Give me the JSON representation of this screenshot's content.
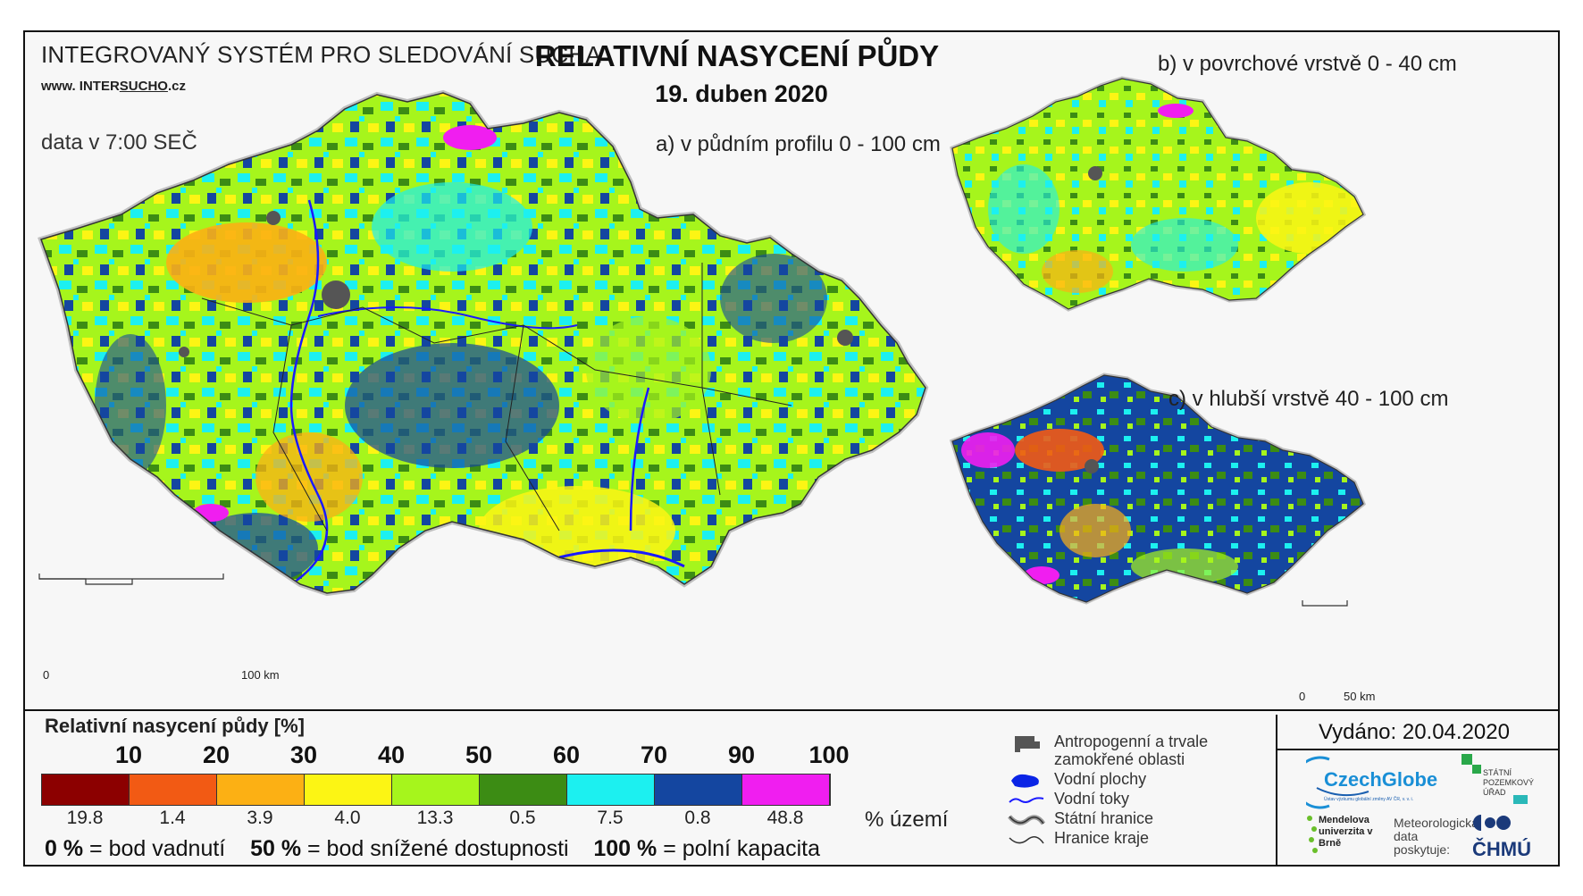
{
  "header": {
    "system_name": "INTEGROVANÝ SYSTÉM PRO SLEDOVÁNÍ SUCHA",
    "url_prefix": "www. INTER",
    "url_brand": "SUCHO",
    "url_suffix": ".cz",
    "data_time": "data v 7:00 SEČ",
    "title": "RELATIVNÍ NASYCENÍ PŮDY",
    "date": "19. duben 2020"
  },
  "maps": {
    "a_label": "a) v půdním profilu 0 - 100 cm",
    "b_label": "b) v povrchové vrstvě 0 - 40 cm",
    "c_label": "c) v hlubší vrstvě 40 - 100 cm",
    "scale_a": {
      "start": "0",
      "end": "100 km"
    },
    "scale_c": {
      "start": "0",
      "end": "50 km"
    }
  },
  "legend": {
    "title": "Relativní nasycení půdy [%]",
    "thresholds": [
      "10",
      "20",
      "30",
      "40",
      "50",
      "60",
      "70",
      "90",
      "100"
    ],
    "classes": [
      {
        "color": "#8c0000",
        "share": "19.8"
      },
      {
        "color": "#f25a14",
        "share": "1.4"
      },
      {
        "color": "#fcb014",
        "share": "3.9"
      },
      {
        "color": "#fcf514",
        "share": "4.0"
      },
      {
        "color": "#a6f51c",
        "share": "13.3"
      },
      {
        "color": "#3c8c14",
        "share": "0.5"
      },
      {
        "color": "#1cf0f0",
        "share": "7.5"
      },
      {
        "color": "#1446a0",
        "share": "0.8"
      },
      {
        "color": "#f01ef0",
        "share": "48.8"
      }
    ],
    "share_unit": "% území",
    "note_0_value": "0 %",
    "note_0_text": "= bod vadnutí",
    "note_50_value": "50 %",
    "note_50_text": "= bod snížené dostupnosti",
    "note_100_value": "100 %",
    "note_100_text": "= polní kapacita"
  },
  "symbols": {
    "anthropogenic": "Antropogenní a trvale zamokřené oblasti",
    "water_bodies": "Vodní plochy",
    "rivers": "Vodní toky",
    "state_border": "Státní hranice",
    "region_border": "Hranice kraje"
  },
  "issued": "Vydáno: 20.04.2020",
  "logos": {
    "czechglobe": "CzechGlobe",
    "czechglobe_sub": "Ústav výzkumu globální změny AV ČR, v. v. i.",
    "spu": "STÁTNÍ POZEMKOVÝ ÚŘAD",
    "mendel": "Mendelova univerzita v Brně",
    "meteo": "Meteorologická data poskytuje:",
    "chmu": "ČHMÚ"
  }
}
